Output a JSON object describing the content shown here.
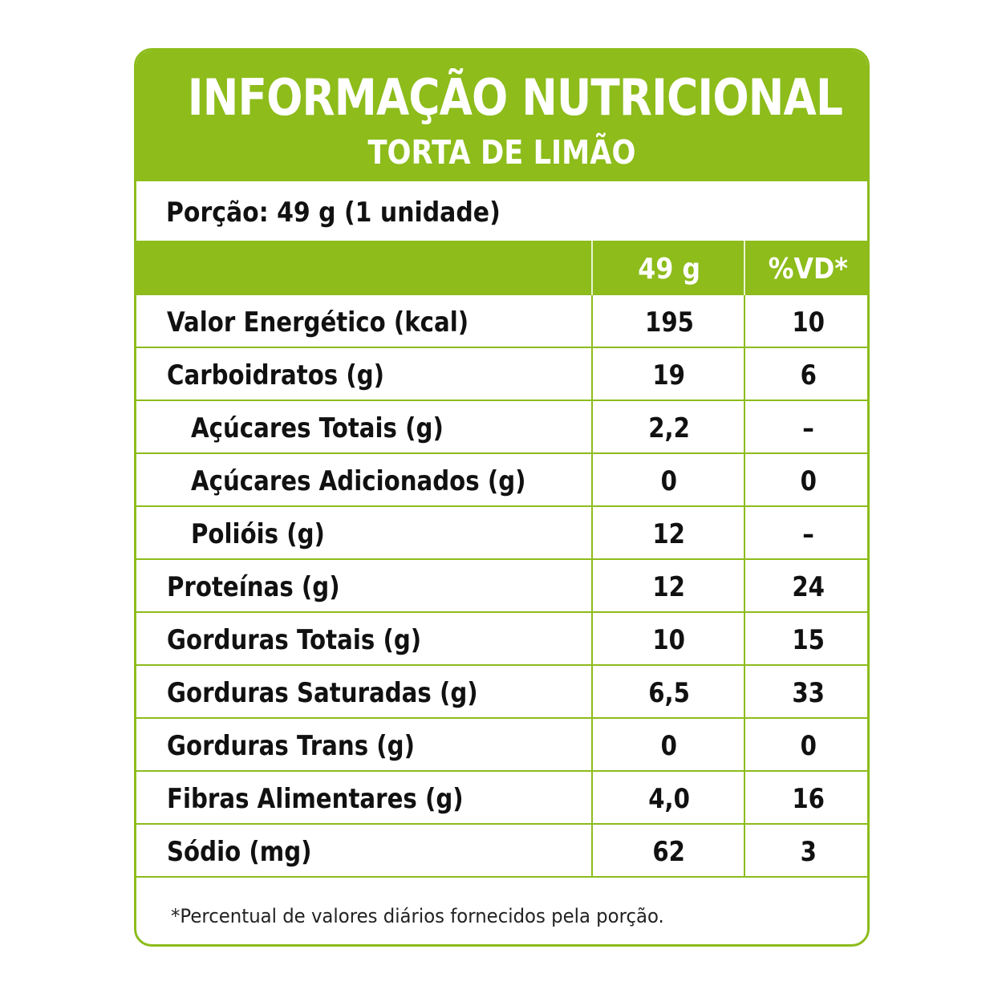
{
  "header": {
    "title": "INFORMAÇÃO NUTRICIONAL",
    "subtitle": "TORTA DE LIMÃO"
  },
  "portion": "Porção: 49 g (1 unidade)",
  "columns": {
    "amount": "49 g",
    "dv": "%VD*"
  },
  "rows": [
    {
      "name": "Valor Energético (kcal)",
      "amount": "195",
      "dv": "10",
      "indent": 0
    },
    {
      "name": "Carboidratos (g)",
      "amount": "19",
      "dv": "6",
      "indent": 0
    },
    {
      "name": "Açúcares Totais (g)",
      "amount": "2,2",
      "dv": "–",
      "indent": 1
    },
    {
      "name": "Açúcares Adicionados (g)",
      "amount": "0",
      "dv": "0",
      "indent": 1
    },
    {
      "name": "Polióis (g)",
      "amount": "12",
      "dv": "–",
      "indent": 1
    },
    {
      "name": "Proteínas (g)",
      "amount": "12",
      "dv": "24",
      "indent": 0
    },
    {
      "name": "Gorduras Totais (g)",
      "amount": "10",
      "dv": "15",
      "indent": 0
    },
    {
      "name": "Gorduras Saturadas (g)",
      "amount": "6,5",
      "dv": "33",
      "indent": 0
    },
    {
      "name": "Gorduras Trans (g)",
      "amount": "0",
      "dv": "0",
      "indent": 0
    },
    {
      "name": "Fibras Alimentares (g)",
      "amount": "4,0",
      "dv": "16",
      "indent": 0
    },
    {
      "name": "Sódio (mg)",
      "amount": "62",
      "dv": "3",
      "indent": 0
    }
  ],
  "footnote": "*Percentual de valores diários fornecidos pela porção.",
  "colors": {
    "accent": "#8dbc1b",
    "text": "#111111"
  }
}
